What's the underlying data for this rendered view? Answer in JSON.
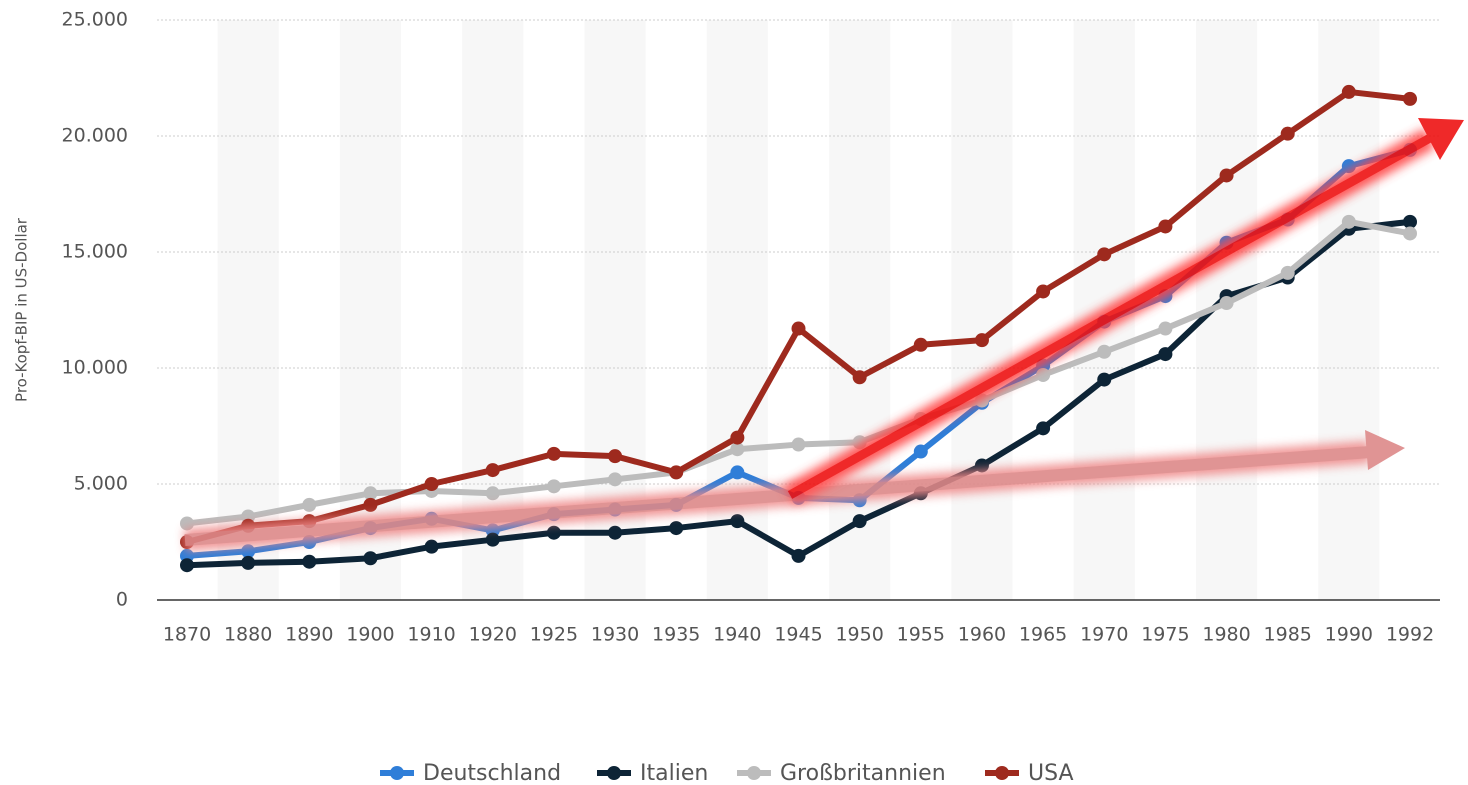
{
  "chart_data": {
    "type": "line",
    "y_label": "Pro-Kopf-BIP in US-Dollar",
    "categories": [
      "1870",
      "1880",
      "1890",
      "1900",
      "1910",
      "1920",
      "1925",
      "1930",
      "1935",
      "1940",
      "1945",
      "1950",
      "1955",
      "1960",
      "1965",
      "1970",
      "1975",
      "1980",
      "1985",
      "1990",
      "1992"
    ],
    "series": [
      {
        "name": "Deutschland",
        "color": "#2f7ed8",
        "values": [
          1900,
          2100,
          2500,
          3100,
          3500,
          3000,
          3700,
          3900,
          4100,
          5500,
          4400,
          4300,
          6400,
          8500,
          10100,
          12000,
          13100,
          15400,
          16400,
          18700,
          19400
        ]
      },
      {
        "name": "Italien",
        "color": "#0d2436",
        "values": [
          1500,
          1600,
          1650,
          1800,
          2300,
          2600,
          2900,
          2900,
          3100,
          3400,
          1900,
          3400,
          4600,
          5800,
          7400,
          9500,
          10600,
          13100,
          13900,
          16000,
          16300
        ]
      },
      {
        "name": "Großbritannien",
        "color": "#bcbcbc",
        "values": [
          3300,
          3600,
          4100,
          4600,
          4700,
          4600,
          4900,
          5200,
          5500,
          6500,
          6700,
          6800,
          7800,
          8600,
          9700,
          10700,
          11700,
          12800,
          14100,
          16300,
          15800
        ]
      },
      {
        "name": "USA",
        "color": "#9e2a1e",
        "values": [
          2500,
          3200,
          3400,
          4100,
          5000,
          5600,
          6300,
          6200,
          5500,
          7000,
          11700,
          9600,
          11000,
          11200,
          13300,
          14900,
          16100,
          18300,
          20100,
          21900,
          21600
        ]
      }
    ],
    "ylim": [
      0,
      25000
    ],
    "yticks": [
      0,
      {
        "value": 5000,
        "label": "5.000"
      },
      {
        "value": 10000,
        "label": "10.000"
      },
      {
        "value": 15000,
        "label": "15.000"
      },
      {
        "value": 20000,
        "label": "20.000"
      },
      {
        "value": 25000,
        "label": "25.000"
      }
    ],
    "grid": true,
    "legend": "bottom"
  }
}
